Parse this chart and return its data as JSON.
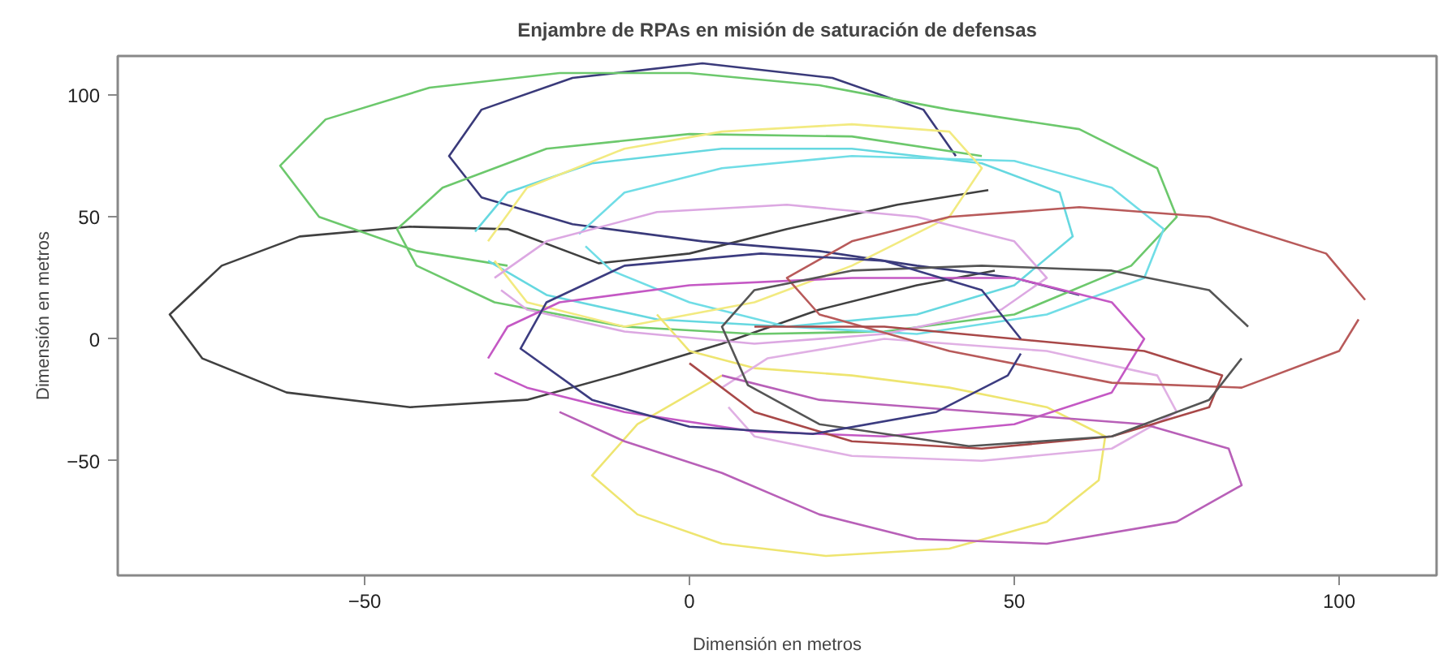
{
  "chart_data": {
    "type": "line",
    "title": "Enjambre de RPAs en misión de saturación de defensas",
    "xlabel": "Dimensión en metros",
    "ylabel": "Dimensión en metros",
    "xlim": [
      -88,
      115
    ],
    "ylim": [
      -97,
      116
    ],
    "xticks": [
      -50,
      0,
      50,
      100
    ],
    "yticks": [
      -50,
      0,
      50,
      100
    ],
    "grid": false,
    "marker": "none",
    "line_style": "solid",
    "series": [
      {
        "color": "#404040",
        "x": [
          46,
          32,
          15,
          0,
          -14,
          -28,
          -43,
          -60,
          -72,
          -80,
          -75,
          -62,
          -43,
          -25,
          -10,
          5,
          20,
          35,
          47
        ],
        "values": [
          61,
          55,
          45,
          35,
          31,
          45,
          46,
          42,
          30,
          10,
          -8,
          -22,
          -28,
          -25,
          -14,
          -2,
          12,
          22,
          28
        ]
      },
      {
        "color": "#3a3a7a",
        "x": [
          41,
          36,
          22,
          2,
          -18,
          -32,
          -37,
          -32,
          -18,
          2,
          20,
          35,
          50,
          60
        ],
        "values": [
          75,
          94,
          107,
          113,
          107,
          94,
          75,
          58,
          47,
          40,
          36,
          30,
          25,
          18
        ]
      },
      {
        "color": "#6cc86c",
        "x": [
          -28,
          -42,
          -57,
          -63,
          -56,
          -40,
          -20,
          0,
          20,
          40,
          60,
          72,
          75,
          68,
          50,
          30,
          10,
          -10,
          -30,
          -42,
          -45,
          -38,
          -22,
          0,
          25,
          45
        ],
        "values": [
          30,
          36,
          50,
          71,
          90,
          103,
          109,
          109,
          104,
          94,
          86,
          70,
          50,
          30,
          10,
          3,
          2,
          5,
          15,
          30,
          45,
          62,
          78,
          84,
          83,
          75
        ]
      },
      {
        "color": "#66d8e0",
        "x": [
          -33,
          -28,
          -15,
          5,
          25,
          45,
          57,
          59,
          50,
          35,
          15,
          -5,
          -22,
          -31
        ],
        "values": [
          44,
          60,
          72,
          78,
          78,
          72,
          60,
          42,
          22,
          10,
          5,
          8,
          18,
          32
        ]
      },
      {
        "color": "#70dde6",
        "x": [
          -17,
          -10,
          5,
          25,
          50,
          65,
          73,
          70,
          55,
          35,
          15,
          0,
          -12,
          -16
        ],
        "values": [
          43,
          60,
          70,
          75,
          73,
          62,
          45,
          25,
          10,
          2,
          5,
          15,
          28,
          38
        ]
      },
      {
        "color": "#f2ea80",
        "x": [
          -31,
          -25,
          -10,
          5,
          25,
          40,
          45,
          40,
          25,
          10,
          -10,
          -25,
          -30
        ],
        "values": [
          40,
          62,
          78,
          85,
          88,
          85,
          70,
          50,
          30,
          15,
          5,
          15,
          32
        ]
      },
      {
        "color": "#eee570",
        "x": [
          -5,
          0,
          10,
          25,
          40,
          55,
          64,
          63,
          55,
          40,
          21,
          5,
          -8,
          -15,
          -8,
          5
        ],
        "values": [
          10,
          -5,
          -12,
          -15,
          -20,
          -28,
          -40,
          -58,
          -75,
          -86,
          -89,
          -84,
          -72,
          -56,
          -35,
          -15
        ]
      },
      {
        "color": "#dca8e2",
        "x": [
          -30,
          -22,
          -5,
          15,
          35,
          50,
          55,
          48,
          30,
          10,
          -10,
          -25,
          -29
        ],
        "values": [
          25,
          40,
          52,
          55,
          50,
          40,
          25,
          12,
          2,
          -2,
          3,
          12,
          20
        ]
      },
      {
        "color": "#e0b0e4",
        "x": [
          5,
          12,
          30,
          55,
          72,
          75,
          65,
          45,
          25,
          10,
          6
        ],
        "values": [
          -20,
          -8,
          0,
          -5,
          -15,
          -30,
          -45,
          -50,
          -48,
          -40,
          -28
        ]
      },
      {
        "color": "#c458c4",
        "x": [
          -31,
          -28,
          -20,
          0,
          25,
          50,
          65,
          70,
          65,
          50,
          30,
          10,
          -10,
          -25,
          -30
        ],
        "values": [
          -8,
          5,
          15,
          22,
          25,
          25,
          15,
          0,
          -22,
          -35,
          -40,
          -38,
          -30,
          -20,
          -14
        ]
      },
      {
        "color": "#b860b8",
        "x": [
          -20,
          -10,
          5,
          20,
          35,
          55,
          75,
          85,
          83,
          70,
          45,
          20,
          5
        ],
        "values": [
          -30,
          -42,
          -55,
          -72,
          -82,
          -84,
          -75,
          -60,
          -45,
          -35,
          -30,
          -25,
          -15
        ]
      },
      {
        "color": "#b85a5a",
        "x": [
          104,
          98,
          80,
          60,
          40,
          25,
          15,
          20,
          40,
          65,
          85,
          100,
          103
        ],
        "values": [
          16,
          35,
          50,
          54,
          50,
          40,
          25,
          10,
          -5,
          -18,
          -20,
          -5,
          8
        ]
      },
      {
        "color": "#a84848",
        "x": [
          10,
          30,
          50,
          70,
          82,
          80,
          65,
          45,
          25,
          10,
          0
        ],
        "values": [
          5,
          5,
          0,
          -5,
          -15,
          -28,
          -40,
          -45,
          -42,
          -30,
          -10
        ]
      },
      {
        "color": "#555555",
        "x": [
          86,
          80,
          65,
          45,
          25,
          10,
          5,
          9,
          20,
          43,
          65,
          80,
          85
        ],
        "values": [
          5,
          20,
          28,
          30,
          28,
          20,
          5,
          -19,
          -35,
          -44,
          -40,
          -25,
          -8
        ]
      },
      {
        "color": "#3c3c80",
        "x": [
          51,
          45,
          30,
          11,
          -10,
          -22,
          -26,
          -15,
          0,
          19,
          38,
          49,
          51
        ],
        "values": [
          0,
          20,
          32,
          35,
          30,
          15,
          -4,
          -25,
          -36,
          -39,
          -30,
          -15,
          -6
        ]
      }
    ]
  }
}
